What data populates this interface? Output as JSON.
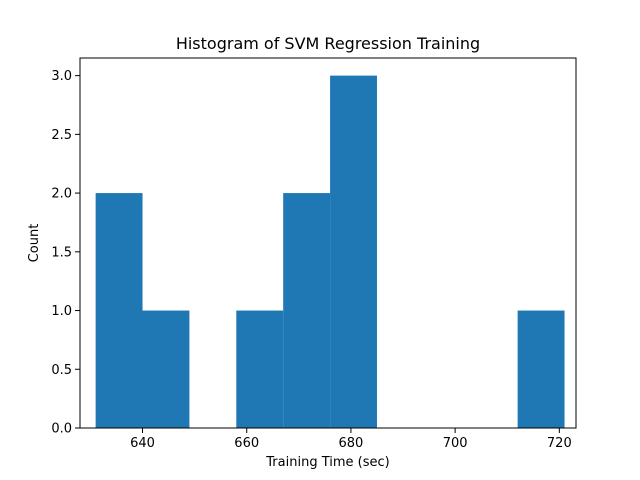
{
  "chart_data": {
    "type": "bar",
    "title": "Histogram of SVM Regression Training",
    "xlabel": "Training Time (sec)",
    "ylabel": "Count",
    "xlim": [
      628,
      723.2
    ],
    "ylim": [
      0,
      3.15
    ],
    "x_ticks": [
      640,
      660,
      680,
      700,
      720
    ],
    "y_ticks": [
      0.0,
      0.5,
      1.0,
      1.5,
      2.0,
      2.5,
      3.0
    ],
    "x_tick_labels": [
      "640",
      "660",
      "680",
      "700",
      "720"
    ],
    "y_tick_labels": [
      "0.0",
      "0.5",
      "1.0",
      "1.5",
      "2.0",
      "2.5",
      "3.0"
    ],
    "bins": [
      {
        "start": 631.0,
        "end": 640.0,
        "count": 2
      },
      {
        "start": 640.0,
        "end": 649.0,
        "count": 1
      },
      {
        "start": 649.0,
        "end": 658.0,
        "count": 0
      },
      {
        "start": 658.0,
        "end": 667.0,
        "count": 1
      },
      {
        "start": 667.0,
        "end": 676.0,
        "count": 2
      },
      {
        "start": 676.0,
        "end": 685.0,
        "count": 3
      },
      {
        "start": 685.0,
        "end": 694.0,
        "count": 0
      },
      {
        "start": 694.0,
        "end": 703.0,
        "count": 0
      },
      {
        "start": 703.0,
        "end": 712.0,
        "count": 0
      },
      {
        "start": 712.0,
        "end": 721.0,
        "count": 1
      }
    ],
    "bar_color": "#1f77b4",
    "grid": false,
    "legend": "none"
  }
}
